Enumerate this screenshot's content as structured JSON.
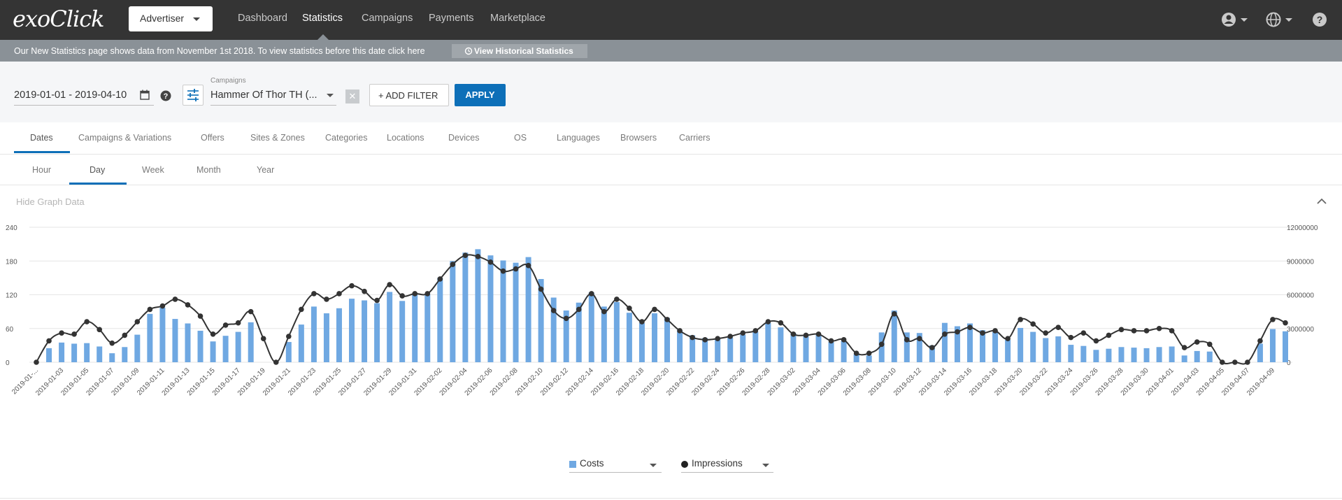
{
  "app": {
    "logo_text": "exoClick"
  },
  "header": {
    "account_type": "Advertiser",
    "nav": [
      "Dashboard",
      "Statistics",
      "Campaigns",
      "Payments",
      "Marketplace"
    ],
    "active_nav": "Statistics",
    "icons": [
      "user-icon",
      "globe-icon",
      "help-icon"
    ]
  },
  "notice": {
    "text": "Our New Statistics page shows data from November 1st 2018. To view statistics before this date click here",
    "button_label": "View Historical Statistics"
  },
  "filters": {
    "date_range": "2019-01-01 - 2019-04-10",
    "campaigns_label": "Campaigns",
    "campaigns_value": "Hammer Of Thor TH (...",
    "clear_symbol": "✕",
    "add_filter_label": "+ ADD FILTER",
    "apply_label": "APPLY"
  },
  "tabs": [
    "Dates",
    "Campaigns & Variations",
    "Offers",
    "Sites & Zones",
    "Categories",
    "Locations",
    "Devices",
    "OS",
    "Languages",
    "Browsers",
    "Carriers"
  ],
  "active_tab": "Dates",
  "subtabs": [
    "Hour",
    "Day",
    "Week",
    "Month",
    "Year"
  ],
  "active_subtab": "Day",
  "graph": {
    "toggle_label": "Hide Graph Data"
  },
  "chart_data": {
    "type": "bar+line",
    "x_start": "2019-01-01",
    "x_end": "2019-04-10",
    "x_tick_labels": [
      "2019-01-...",
      "2019-01-03",
      "2019-01-05",
      "2019-01-07",
      "2019-01-09",
      "2019-01-11",
      "2019-01-13",
      "2019-01-15",
      "2019-01-17",
      "2019-01-19",
      "2019-01-21",
      "2019-01-23",
      "2019-01-25",
      "2019-01-27",
      "2019-01-29",
      "2019-01-31",
      "2019-02-02",
      "2019-02-04",
      "2019-02-06",
      "2019-02-08",
      "2019-02-10",
      "2019-02-12",
      "2019-02-14",
      "2019-02-16",
      "2019-02-18",
      "2019-02-20",
      "2019-02-22",
      "2019-02-24",
      "2019-02-26",
      "2019-02-28",
      "2019-03-02",
      "2019-03-04",
      "2019-03-06",
      "2019-03-08",
      "2019-03-10",
      "2019-03-12",
      "2019-03-14",
      "2019-03-16",
      "2019-03-18",
      "2019-03-20",
      "2019-03-22",
      "2019-03-24",
      "2019-03-26",
      "2019-03-28",
      "2019-03-30",
      "2019-04-01",
      "2019-04-03",
      "2019-04-05",
      "2019-04-07",
      "2019-04-09"
    ],
    "y_left": {
      "ticks": [
        0,
        60,
        120,
        180,
        240
      ],
      "range": [
        0,
        240
      ]
    },
    "y_right": {
      "ticks": [
        0,
        3000000,
        6000000,
        9000000,
        12000000
      ],
      "range": [
        0,
        12000000
      ]
    },
    "grid": true,
    "legend_position": "bottom-center",
    "series": [
      {
        "name": "Costs",
        "type": "bar",
        "axis": "left",
        "color": "#6fa8e2",
        "values": [
          0,
          25,
          35,
          33,
          34,
          28,
          16,
          27,
          49,
          86,
          97,
          77,
          69,
          56,
          37,
          47,
          54,
          71,
          0,
          0,
          36,
          67,
          99,
          87,
          96,
          113,
          110,
          105,
          125,
          109,
          120,
          121,
          150,
          180,
          195,
          201,
          190,
          181,
          177,
          187,
          148,
          115,
          92,
          106,
          124,
          99,
          107,
          88,
          70,
          87,
          79,
          57,
          48,
          43,
          41,
          44,
          49,
          54,
          70,
          62,
          52,
          46,
          49,
          36,
          38,
          14,
          12,
          53,
          92,
          53,
          52,
          30,
          70,
          64,
          69,
          57,
          54,
          40,
          61,
          54,
          43,
          46,
          31,
          29,
          22,
          24,
          27,
          26,
          25,
          27,
          28,
          12,
          20,
          19,
          0,
          0,
          0,
          33,
          59,
          55
        ]
      },
      {
        "name": "Impressions",
        "type": "line",
        "axis": "right",
        "color": "#333333",
        "values": [
          0,
          1900000,
          2600000,
          2500000,
          3600000,
          2900000,
          1700000,
          2400000,
          3600000,
          4700000,
          5000000,
          5600000,
          5100000,
          4100000,
          2500000,
          3300000,
          3500000,
          4500000,
          2100000,
          0,
          2300000,
          4700000,
          6100000,
          5600000,
          6100000,
          6800000,
          6300000,
          5500000,
          6900000,
          5900000,
          6100000,
          6100000,
          7400000,
          8700000,
          9500000,
          9400000,
          8900000,
          8100000,
          8300000,
          8600000,
          6500000,
          4600000,
          3900000,
          4700000,
          6100000,
          4500000,
          5600000,
          4800000,
          3600000,
          4700000,
          3800000,
          2800000,
          2200000,
          2000000,
          2100000,
          2300000,
          2600000,
          2800000,
          3600000,
          3500000,
          2500000,
          2400000,
          2500000,
          1900000,
          2000000,
          800000,
          800000,
          1600000,
          4300000,
          2000000,
          2100000,
          1300000,
          2500000,
          2700000,
          3100000,
          2600000,
          2800000,
          2100000,
          3800000,
          3400000,
          2600000,
          3100000,
          2200000,
          2600000,
          1900000,
          2400000,
          2900000,
          2800000,
          2800000,
          3000000,
          2800000,
          1300000,
          1800000,
          1600000,
          0,
          0,
          0,
          1900000,
          3800000,
          3500000
        ]
      }
    ]
  }
}
